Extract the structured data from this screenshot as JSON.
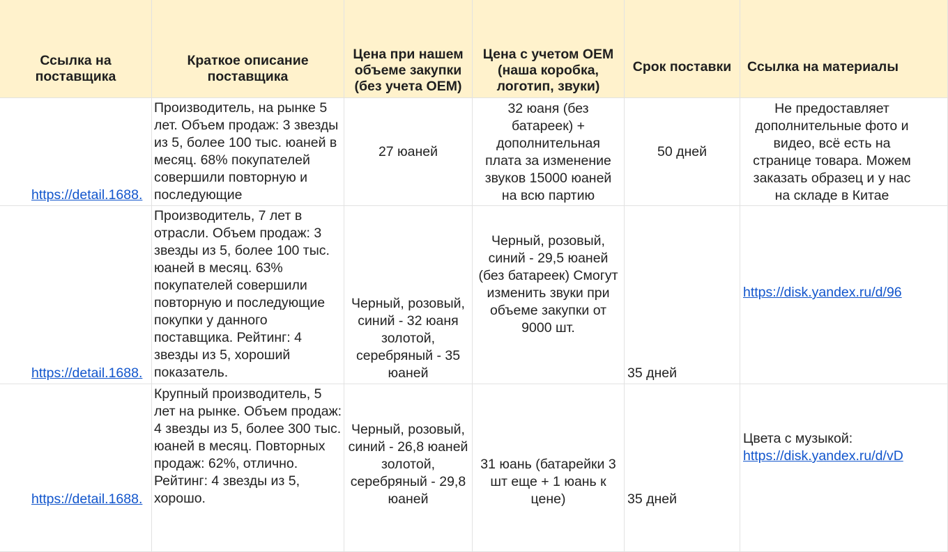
{
  "headers": {
    "supplier_link": "Ссылка на поставщика",
    "supplier_desc": "Краткое описание поставщика",
    "price_no_oem": "Цена при нашем объеме закупки (без учета ОЕМ)",
    "price_oem": "Цена с учетом ОЕМ (наша коробка, логотип, звуки)",
    "delivery": "Срок поставки",
    "materials": "Ссылка на материалы"
  },
  "rows": [
    {
      "supplier_link": "https://detail.1688.",
      "description": "Производитель, на рынке 5 лет. Объем продаж: 3 звезды из 5, более 100 тыс. юаней в месяц. 68% покупателей совершили повторную и последующие",
      "price_no_oem": "27 юаней",
      "price_oem": "32 юаня (без батареек) + дополнительная плата за изменение звуков 15000 юаней на всю партию",
      "delivery": "50 дней",
      "materials_text": "Не предоставляет дополнительные фото и видео, всё есть на странице товара. Можем заказать образец и у нас на складе в Китае",
      "materials_link": ""
    },
    {
      "supplier_link": "https://detail.1688.",
      "description": "Производитель, 7 лет в отрасли. Объем продаж: 3 звезды из 5, более 100 тыс. юаней в месяц. 63% покупателей совершили повторную и последующие покупки у данного поставщика. Рейтинг: 4 звезды из 5, хороший показатель.",
      "price_no_oem": "Черный, розовый, синий - 32 юаня золотой, серебряный - 35 юаней",
      "price_oem": "Черный, розовый, синий - 29,5 юаней (без батареек) Смогут изменить звуки при объеме закупки от 9000 шт.",
      "delivery": "35 дней",
      "materials_text": "",
      "materials_link": "https://disk.yandex.ru/d/96"
    },
    {
      "supplier_link": "https://detail.1688.",
      "description": "Крупный производитель, 5 лет на рынке. Объем продаж: 4 звезды из 5, более 300 тыс. юаней в месяц. Повторных продаж: 62%, отлично. Рейтинг: 4 звезды из 5, хорошо.",
      "price_no_oem": "Черный, розовый, синий - 26,8 юаней золотой, серебряный - 29,8 юаней",
      "price_oem": "31 юань (батарейки 3 шт еще + 1 юань к цене)",
      "delivery": "35 дней",
      "materials_text": "Цвета с музыкой:",
      "materials_link": "https://disk.yandex.ru/d/vD"
    }
  ],
  "colors": {
    "header_bg": "#fff2cc",
    "link": "#1155cc",
    "grid_line": "#e2e2e2"
  }
}
